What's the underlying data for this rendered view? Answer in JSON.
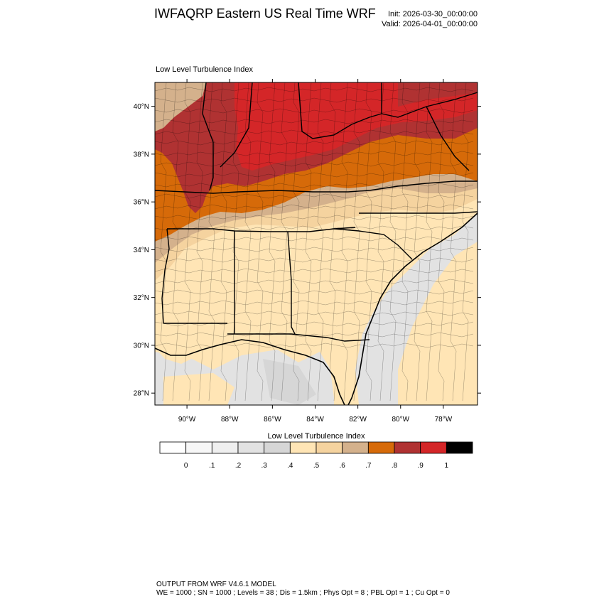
{
  "header": {
    "title": "IWFAQRP Eastern US Real Time WRF",
    "init": "Init: 2026-03-30_00:00:00",
    "valid": "Valid: 2026-04-01_00:00:00"
  },
  "map": {
    "panel_title": "Low Level Turbulence Index",
    "lat_labels": [
      "40°N",
      "38°N",
      "36°N",
      "34°N",
      "32°N",
      "30°N",
      "28°N"
    ],
    "lon_labels": [
      "90°W",
      "88°W",
      "86°W",
      "84°W",
      "82°W",
      "80°W",
      "78°W"
    ],
    "lat_values": [
      40,
      38,
      36,
      34,
      32,
      30,
      28
    ],
    "lon_values": [
      -90,
      -88,
      -86,
      -84,
      -82,
      -80,
      -78
    ],
    "extent": {
      "lon_min": -91.5,
      "lon_max": -76.4,
      "lat_min": 27.5,
      "lat_max": 41.0
    }
  },
  "colorbar": {
    "title": "Low Level Turbulence Index",
    "tick_labels": [
      "0",
      ".1",
      ".2",
      ".3",
      ".4",
      ".5",
      ".6",
      ".7",
      ".8",
      ".9",
      "1"
    ],
    "colors": [
      "#ffffff",
      "#f7f7f7",
      "#efefef",
      "#e2e2e2",
      "#d6d6d6",
      "#ffe5b5",
      "#f5d39f",
      "#d4b18c",
      "#d66a09",
      "#b03232",
      "#d42628",
      "#000000"
    ]
  },
  "footer": {
    "line1": "OUTPUT FROM WRF V4.6.1 MODEL",
    "line2": "WE = 1000 ; SN = 1000 ; Levels = 38 ; Dis = 1.5km ; Phys Opt = 8 ; PBL Opt = 1 ; Cu Opt = 0"
  }
}
